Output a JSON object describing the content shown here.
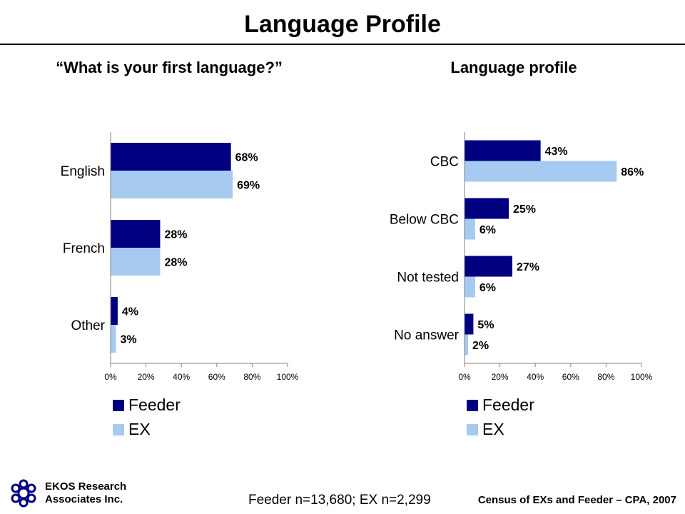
{
  "page": {
    "title": "Language Profile",
    "sample_note": "Feeder n=13,680; EX n=2,299",
    "source": "Census of EXs and Feeder – CPA, 2007"
  },
  "brand": {
    "name_line1": "EKOS Research",
    "name_line2": "Associates Inc.",
    "logo_icon": "ekos-knot-logo-icon",
    "logo_color": "#000080"
  },
  "colors": {
    "feeder": "#000080",
    "ex": "#A6CAF0",
    "axis": "#808080"
  },
  "chart_data": [
    {
      "type": "bar",
      "orientation": "horizontal",
      "title": "“What is your first language?”",
      "categories": [
        "English",
        "French",
        "Other"
      ],
      "series": [
        {
          "name": "Feeder",
          "values": [
            68,
            28,
            4
          ],
          "labels": [
            "68%",
            "28%",
            "4%"
          ]
        },
        {
          "name": "EX",
          "values": [
            69,
            28,
            3
          ],
          "labels": [
            "69%",
            "28%",
            "3%"
          ]
        }
      ],
      "xlim": [
        0,
        100
      ],
      "xticks": [
        "0%",
        "20%",
        "40%",
        "60%",
        "80%",
        "100%"
      ],
      "legend_position": "bottom-left",
      "grid": false
    },
    {
      "type": "bar",
      "orientation": "horizontal",
      "title": "Language profile",
      "categories": [
        "CBC",
        "Below CBC",
        "Not tested",
        "No answer"
      ],
      "series": [
        {
          "name": "Feeder",
          "values": [
            43,
            25,
            27,
            5
          ],
          "labels": [
            "43%",
            "25%",
            "27%",
            "5%"
          ]
        },
        {
          "name": "EX",
          "values": [
            86,
            6,
            6,
            2
          ],
          "labels": [
            "86%",
            "6%",
            "6%",
            "2%"
          ]
        }
      ],
      "xlim": [
        0,
        100
      ],
      "xticks": [
        "0%",
        "20%",
        "40%",
        "60%",
        "80%",
        "100%"
      ],
      "legend_position": "bottom-left",
      "grid": false
    }
  ]
}
